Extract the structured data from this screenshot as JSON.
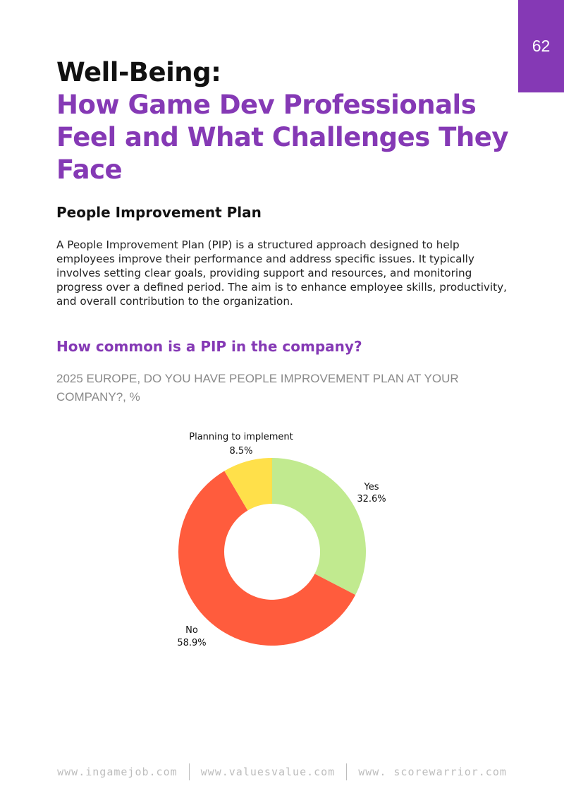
{
  "page_number": "62",
  "title": {
    "line1": "Well-Being:",
    "line2": "How Game Dev Professionals Feel and What Challenges They Face"
  },
  "section": {
    "heading": "People Improvement Plan",
    "body": "A People Improvement Plan (PIP) is a structured approach designed to help employees improve their performance and address specific issues. It typically involves setting clear goals, providing support and resources, and monitoring progress over a defined period. The aim is to enhance employee skills, productivity, and overall contribution to the organization."
  },
  "question": "How common is a PIP in the company?",
  "chart_subtitle": "2025 EUROPE, DO YOU HAVE PEOPLE IMPROVEMENT PLAN AT YOUR COMPANY?, %",
  "chart_data": {
    "type": "pie",
    "title": "2025 EUROPE, DO YOU HAVE PEOPLE IMPROVEMENT PLAN AT YOUR COMPANY?, %",
    "donut": true,
    "slices": [
      {
        "label": "Yes",
        "value": 32.6,
        "value_label": "32.6%",
        "color": "#c1ea8f"
      },
      {
        "label": "No",
        "value": 58.9,
        "value_label": "58.9%",
        "color": "#ff5c3d"
      },
      {
        "label": "Planning to implement",
        "value": 8.5,
        "value_label": "8.5%",
        "color": "#ffe04a"
      }
    ]
  },
  "footer": {
    "links": [
      "www.ingamejob.com",
      "www.valuesvalue.com",
      "www. scorewarrior.com"
    ]
  },
  "colors": {
    "accent": "#8539b5",
    "subtitle_gray": "#8a8a8a",
    "footer_gray": "#bdbdbd"
  }
}
